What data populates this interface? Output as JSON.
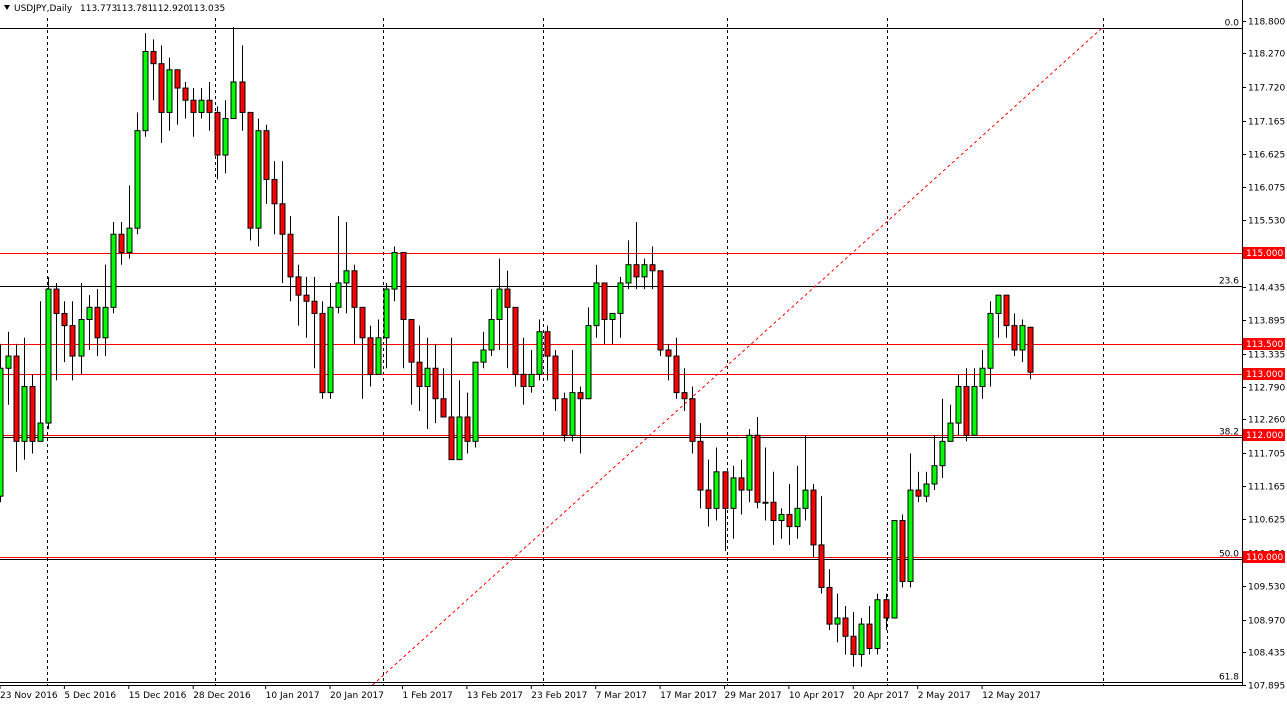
{
  "header": {
    "symbol": "USDJPY,Daily",
    "open": "113.773",
    "high": "113.781",
    "low": "112.920",
    "close": "113.035"
  },
  "colors": {
    "bull": "#00ff00",
    "bear": "#ff0000",
    "wick": "#000000",
    "level_line": "#ff0000",
    "fib_line": "#000000",
    "grid": "#000000",
    "badge": "#ff0000"
  },
  "chart_data": {
    "type": "candlestick",
    "title": "USDJPY,Daily",
    "ylim": [
      107.9,
      118.85
    ],
    "y_ticks": [
      "118.800",
      "118.270",
      "117.720",
      "117.165",
      "116.625",
      "116.075",
      "115.530",
      "114.980",
      "114.435",
      "113.895",
      "113.335",
      "112.790",
      "112.260",
      "111.705",
      "111.165",
      "110.625",
      "110.070",
      "109.530",
      "108.970",
      "108.435",
      "107.895"
    ],
    "x_labels": [
      {
        "label": "23 Nov 2016",
        "index": 0
      },
      {
        "label": "5 Dec 2016",
        "index": 8
      },
      {
        "label": "15 Dec 2016",
        "index": 16
      },
      {
        "label": "28 Dec 2016",
        "index": 24
      },
      {
        "label": "10 Jan 2017",
        "index": 33
      },
      {
        "label": "20 Jan 2017",
        "index": 41
      },
      {
        "label": "1 Feb 2017",
        "index": 50
      },
      {
        "label": "13 Feb 2017",
        "index": 58
      },
      {
        "label": "23 Feb 2017",
        "index": 66
      },
      {
        "label": "7 Mar 2017",
        "index": 74
      },
      {
        "label": "17 Mar 2017",
        "index": 82
      },
      {
        "label": "29 Mar 2017",
        "index": 90
      },
      {
        "label": "10 Apr 2017",
        "index": 98
      },
      {
        "label": "20 Apr 2017",
        "index": 106
      },
      {
        "label": "2 May 2017",
        "index": 114
      },
      {
        "label": "12 May 2017",
        "index": 122
      }
    ],
    "candles": [
      [
        111.0,
        113.1,
        113.5,
        110.9
      ],
      [
        113.1,
        113.3,
        113.7,
        112.5
      ],
      [
        113.3,
        111.9,
        113.5,
        111.4
      ],
      [
        111.9,
        112.8,
        113.6,
        111.6
      ],
      [
        112.8,
        111.9,
        113.0,
        111.7
      ],
      [
        111.9,
        112.2,
        114.2,
        112.0
      ],
      [
        112.2,
        114.4,
        114.6,
        112.1
      ],
      [
        114.4,
        114.0,
        114.5,
        112.9
      ],
      [
        114.0,
        113.8,
        114.2,
        113.2
      ],
      [
        113.8,
        113.3,
        114.2,
        112.9
      ],
      [
        113.3,
        113.9,
        114.5,
        113.0
      ],
      [
        113.9,
        114.1,
        114.3,
        113.4
      ],
      [
        114.1,
        113.6,
        114.4,
        113.3
      ],
      [
        113.6,
        114.1,
        114.8,
        113.3
      ],
      [
        114.1,
        115.3,
        115.5,
        114.0
      ],
      [
        115.3,
        115.0,
        115.5,
        114.8
      ],
      [
        115.0,
        115.4,
        116.1,
        114.9
      ],
      [
        115.4,
        117.0,
        117.3,
        115.3
      ],
      [
        117.0,
        118.3,
        118.6,
        116.9
      ],
      [
        118.3,
        118.1,
        118.5,
        117.5
      ],
      [
        118.1,
        117.3,
        118.4,
        116.8
      ],
      [
        117.3,
        118.0,
        118.2,
        117.0
      ],
      [
        118.0,
        117.7,
        118.0,
        117.1
      ],
      [
        117.7,
        117.5,
        117.8,
        117.2
      ],
      [
        117.5,
        117.3,
        117.7,
        116.9
      ],
      [
        117.3,
        117.5,
        117.7,
        117.2
      ],
      [
        117.5,
        117.3,
        117.8,
        117.0
      ],
      [
        117.3,
        116.6,
        117.4,
        116.2
      ],
      [
        116.6,
        117.2,
        117.5,
        116.3
      ],
      [
        117.2,
        117.8,
        118.7,
        117.2
      ],
      [
        117.8,
        117.3,
        118.4,
        117.0
      ],
      [
        117.3,
        115.4,
        117.3,
        115.2
      ],
      [
        115.4,
        117.0,
        117.2,
        115.1
      ],
      [
        117.0,
        116.2,
        117.1,
        115.8
      ],
      [
        116.2,
        115.8,
        116.5,
        115.3
      ],
      [
        115.8,
        115.3,
        116.5,
        114.5
      ],
      [
        115.3,
        114.6,
        115.6,
        114.2
      ],
      [
        114.6,
        114.3,
        114.8,
        113.8
      ],
      [
        114.3,
        114.2,
        114.6,
        113.6
      ],
      [
        114.2,
        114.0,
        114.6,
        113.1
      ],
      [
        114.0,
        112.7,
        114.2,
        112.6
      ],
      [
        112.7,
        114.1,
        114.5,
        112.6
      ],
      [
        114.1,
        114.5,
        115.6,
        114.0
      ],
      [
        114.5,
        114.7,
        115.5,
        114.0
      ],
      [
        114.7,
        114.1,
        114.8,
        113.5
      ],
      [
        114.1,
        113.6,
        114.1,
        112.6
      ],
      [
        113.6,
        113.0,
        113.8,
        112.8
      ],
      [
        113.0,
        113.6,
        113.9,
        113.0
      ],
      [
        113.6,
        114.4,
        114.5,
        113.1
      ],
      [
        114.4,
        115.0,
        115.1,
        114.2
      ],
      [
        115.0,
        113.9,
        114.8,
        113.1
      ],
      [
        113.9,
        113.2,
        113.9,
        112.5
      ],
      [
        113.2,
        112.8,
        113.8,
        112.4
      ],
      [
        112.8,
        113.1,
        113.6,
        112.1
      ],
      [
        113.1,
        112.6,
        113.5,
        112.2
      ],
      [
        112.6,
        112.3,
        113.1,
        112.3
      ],
      [
        112.3,
        111.6,
        113.6,
        111.6
      ],
      [
        111.6,
        112.3,
        112.9,
        111.6
      ],
      [
        112.3,
        111.9,
        112.7,
        111.7
      ],
      [
        111.9,
        113.2,
        113.2,
        111.8
      ],
      [
        113.2,
        113.4,
        113.7,
        113.1
      ],
      [
        113.4,
        113.9,
        114.4,
        113.3
      ],
      [
        113.9,
        114.4,
        114.9,
        113.4
      ],
      [
        114.4,
        114.1,
        114.7,
        113.1
      ],
      [
        114.1,
        113.0,
        114.0,
        112.8
      ],
      [
        113.0,
        112.8,
        113.6,
        112.5
      ],
      [
        112.8,
        113.0,
        113.4,
        112.7
      ],
      [
        113.0,
        113.7,
        113.9,
        112.9
      ],
      [
        113.7,
        113.3,
        113.8,
        112.9
      ],
      [
        113.3,
        112.6,
        113.4,
        112.4
      ],
      [
        112.6,
        112.0,
        112.7,
        111.9
      ],
      [
        112.0,
        112.7,
        113.4,
        111.9
      ],
      [
        112.7,
        112.6,
        112.8,
        111.7
      ],
      [
        112.6,
        113.8,
        114.1,
        112.6
      ],
      [
        113.8,
        114.5,
        114.8,
        113.6
      ],
      [
        114.5,
        113.9,
        114.5,
        113.5
      ],
      [
        113.9,
        114.0,
        114.0,
        113.5
      ],
      [
        114.0,
        114.5,
        114.6,
        113.6
      ],
      [
        114.5,
        114.8,
        115.2,
        114.4
      ],
      [
        114.8,
        114.6,
        115.5,
        114.4
      ],
      [
        114.6,
        114.8,
        114.9,
        114.4
      ],
      [
        114.8,
        114.7,
        115.1,
        114.4
      ],
      [
        114.7,
        113.4,
        114.7,
        113.3
      ],
      [
        113.4,
        113.3,
        113.5,
        112.9
      ],
      [
        113.3,
        112.7,
        113.6,
        112.6
      ],
      [
        112.7,
        112.6,
        113.1,
        112.4
      ],
      [
        112.6,
        111.9,
        112.8,
        111.7
      ],
      [
        111.9,
        111.1,
        112.2,
        110.8
      ],
      [
        111.1,
        110.8,
        111.6,
        110.5
      ],
      [
        110.8,
        111.4,
        111.8,
        110.6
      ],
      [
        111.4,
        110.8,
        111.4,
        110.1
      ],
      [
        110.8,
        111.3,
        111.5,
        110.3
      ],
      [
        111.3,
        111.1,
        111.6,
        110.7
      ],
      [
        111.1,
        112.0,
        112.1,
        110.9
      ],
      [
        112.0,
        110.9,
        112.3,
        110.8
      ],
      [
        110.9,
        110.9,
        111.8,
        110.6
      ],
      [
        110.9,
        110.6,
        111.4,
        110.2
      ],
      [
        110.6,
        110.7,
        110.8,
        110.3
      ],
      [
        110.7,
        110.5,
        111.2,
        110.2
      ],
      [
        110.5,
        110.8,
        111.5,
        110.3
      ],
      [
        110.8,
        111.1,
        112.0,
        110.6
      ],
      [
        111.1,
        110.2,
        111.2,
        110.0
      ],
      [
        110.2,
        109.5,
        111.0,
        109.4
      ],
      [
        109.5,
        108.9,
        109.8,
        108.8
      ],
      [
        108.9,
        109.0,
        109.4,
        108.6
      ],
      [
        109.0,
        108.7,
        109.2,
        108.4
      ],
      [
        108.7,
        108.4,
        109.1,
        108.2
      ],
      [
        108.4,
        108.9,
        109.0,
        108.2
      ],
      [
        108.9,
        108.5,
        109.2,
        108.4
      ],
      [
        108.5,
        109.3,
        109.4,
        108.4
      ],
      [
        109.3,
        109.0,
        109.4,
        108.8
      ],
      [
        109.0,
        110.6,
        110.6,
        109.0
      ],
      [
        110.6,
        109.6,
        110.7,
        109.5
      ],
      [
        109.6,
        111.1,
        111.7,
        109.5
      ],
      [
        111.1,
        111.0,
        111.4,
        110.9
      ],
      [
        111.0,
        111.2,
        111.4,
        110.9
      ],
      [
        111.2,
        111.5,
        112.0,
        111.1
      ],
      [
        111.5,
        111.9,
        112.6,
        111.3
      ],
      [
        111.9,
        112.2,
        112.5,
        111.9
      ],
      [
        112.2,
        112.8,
        113.0,
        112.0
      ],
      [
        112.8,
        112.0,
        113.1,
        111.9
      ],
      [
        112.0,
        112.8,
        113.1,
        112.5
      ],
      [
        112.8,
        113.1,
        113.4,
        112.6
      ],
      [
        113.1,
        114.0,
        114.2,
        112.8
      ],
      [
        114.0,
        114.3,
        114.3,
        113.6
      ],
      [
        114.3,
        113.8,
        114.3,
        113.6
      ],
      [
        113.8,
        113.4,
        114.0,
        113.3
      ],
      [
        113.4,
        113.8,
        113.9,
        113.2
      ],
      [
        113.773,
        113.035,
        113.781,
        112.92
      ]
    ],
    "levels": [
      {
        "price": 115.0,
        "label": "115.000"
      },
      {
        "price": 113.5,
        "label": "113.500"
      },
      {
        "price": 113.0,
        "label": "113.000"
      },
      {
        "price": 112.0,
        "label": "112.000"
      },
      {
        "price": 110.0,
        "label": "110.000"
      }
    ],
    "fib_levels": [
      {
        "price": 118.68,
        "label": "0.0"
      },
      {
        "price": 114.45,
        "label": "23.6"
      },
      {
        "price": 111.97,
        "label": "38.2"
      },
      {
        "price": 109.97,
        "label": "50.0"
      },
      {
        "price": 107.95,
        "label": "61.8"
      }
    ],
    "trendline": {
      "from": [
        50,
        107.9
      ],
      "to": [
        133,
        118.7
      ]
    }
  }
}
